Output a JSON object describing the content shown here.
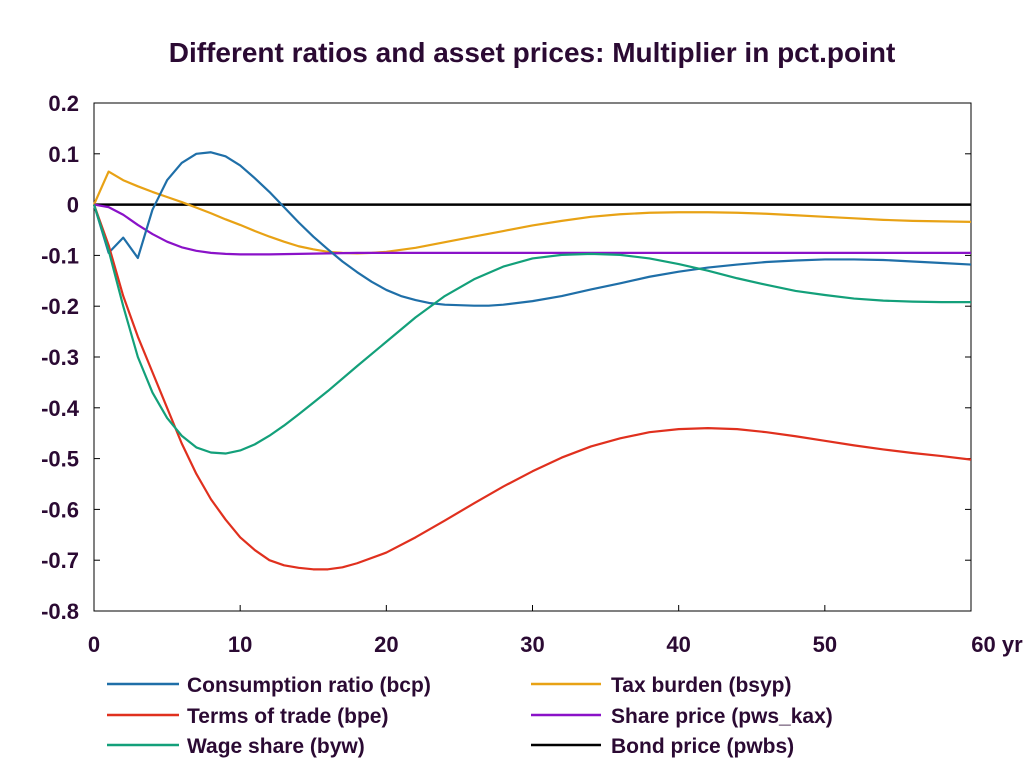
{
  "chart_data": {
    "type": "line",
    "title": "Different ratios and asset prices: Multiplier in pct.point",
    "xlabel": "",
    "ylabel": "",
    "xlim": [
      0,
      60
    ],
    "ylim": [
      -0.8,
      0.2
    ],
    "x_ticks": [
      0,
      10,
      20,
      30,
      40,
      50,
      60
    ],
    "x_tick_labels": [
      "0",
      "10",
      "20",
      "30",
      "40",
      "50",
      "60 yr"
    ],
    "y_ticks": [
      0.2,
      0.1,
      0,
      -0.1,
      -0.2,
      -0.3,
      -0.4,
      -0.5,
      -0.6,
      -0.7,
      -0.8
    ],
    "y_tick_labels": [
      "0.2",
      "0.1",
      "0",
      "-0.1",
      "-0.2",
      "-0.3",
      "-0.4",
      "-0.5",
      "-0.6",
      "-0.7",
      "-0.8"
    ],
    "grid": false,
    "legend_position": "bottom",
    "series": [
      {
        "name": "Consumption ratio (bcp)",
        "color": "#1f6fa8",
        "points": [
          [
            0,
            0
          ],
          [
            1,
            -0.095
          ],
          [
            2,
            -0.065
          ],
          [
            3,
            -0.105
          ],
          [
            4,
            -0.01
          ],
          [
            5,
            0.048
          ],
          [
            6,
            0.082
          ],
          [
            7,
            0.1
          ],
          [
            8,
            0.103
          ],
          [
            9,
            0.095
          ],
          [
            10,
            0.077
          ],
          [
            11,
            0.052
          ],
          [
            12,
            0.025
          ],
          [
            13,
            -0.005
          ],
          [
            14,
            -0.035
          ],
          [
            15,
            -0.063
          ],
          [
            16,
            -0.088
          ],
          [
            17,
            -0.112
          ],
          [
            18,
            -0.133
          ],
          [
            19,
            -0.152
          ],
          [
            20,
            -0.168
          ],
          [
            21,
            -0.18
          ],
          [
            22,
            -0.188
          ],
          [
            23,
            -0.194
          ],
          [
            24,
            -0.197
          ],
          [
            25,
            -0.198
          ],
          [
            26,
            -0.199
          ],
          [
            27,
            -0.199
          ],
          [
            28,
            -0.197
          ],
          [
            30,
            -0.19
          ],
          [
            32,
            -0.18
          ],
          [
            34,
            -0.167
          ],
          [
            36,
            -0.155
          ],
          [
            38,
            -0.142
          ],
          [
            40,
            -0.132
          ],
          [
            42,
            -0.124
          ],
          [
            44,
            -0.118
          ],
          [
            46,
            -0.113
          ],
          [
            48,
            -0.11
          ],
          [
            50,
            -0.108
          ],
          [
            52,
            -0.108
          ],
          [
            54,
            -0.109
          ],
          [
            56,
            -0.112
          ],
          [
            58,
            -0.115
          ],
          [
            60,
            -0.118
          ]
        ]
      },
      {
        "name": "Terms of trade (bpe)",
        "color": "#e0301e",
        "points": [
          [
            0,
            0
          ],
          [
            1,
            -0.08
          ],
          [
            2,
            -0.18
          ],
          [
            3,
            -0.26
          ],
          [
            4,
            -0.33
          ],
          [
            5,
            -0.4
          ],
          [
            6,
            -0.47
          ],
          [
            7,
            -0.53
          ],
          [
            8,
            -0.58
          ],
          [
            9,
            -0.62
          ],
          [
            10,
            -0.655
          ],
          [
            11,
            -0.68
          ],
          [
            12,
            -0.7
          ],
          [
            13,
            -0.71
          ],
          [
            14,
            -0.715
          ],
          [
            15,
            -0.718
          ],
          [
            16,
            -0.718
          ],
          [
            17,
            -0.714
          ],
          [
            18,
            -0.706
          ],
          [
            20,
            -0.685
          ],
          [
            22,
            -0.655
          ],
          [
            24,
            -0.622
          ],
          [
            26,
            -0.588
          ],
          [
            28,
            -0.555
          ],
          [
            30,
            -0.525
          ],
          [
            32,
            -0.498
          ],
          [
            34,
            -0.476
          ],
          [
            36,
            -0.46
          ],
          [
            38,
            -0.448
          ],
          [
            40,
            -0.442
          ],
          [
            42,
            -0.44
          ],
          [
            44,
            -0.442
          ],
          [
            46,
            -0.448
          ],
          [
            48,
            -0.456
          ],
          [
            50,
            -0.465
          ],
          [
            52,
            -0.474
          ],
          [
            54,
            -0.482
          ],
          [
            56,
            -0.489
          ],
          [
            58,
            -0.495
          ],
          [
            60,
            -0.502
          ]
        ]
      },
      {
        "name": "Wage share (byw)",
        "color": "#13a07a",
        "points": [
          [
            0,
            0
          ],
          [
            1,
            -0.09
          ],
          [
            2,
            -0.2
          ],
          [
            3,
            -0.3
          ],
          [
            4,
            -0.37
          ],
          [
            5,
            -0.42
          ],
          [
            6,
            -0.455
          ],
          [
            7,
            -0.478
          ],
          [
            8,
            -0.488
          ],
          [
            9,
            -0.49
          ],
          [
            10,
            -0.484
          ],
          [
            11,
            -0.472
          ],
          [
            12,
            -0.455
          ],
          [
            13,
            -0.435
          ],
          [
            14,
            -0.413
          ],
          [
            15,
            -0.39
          ],
          [
            16,
            -0.367
          ],
          [
            18,
            -0.318
          ],
          [
            20,
            -0.27
          ],
          [
            22,
            -0.222
          ],
          [
            24,
            -0.18
          ],
          [
            26,
            -0.147
          ],
          [
            28,
            -0.122
          ],
          [
            30,
            -0.106
          ],
          [
            32,
            -0.099
          ],
          [
            34,
            -0.097
          ],
          [
            36,
            -0.099
          ],
          [
            38,
            -0.106
          ],
          [
            40,
            -0.117
          ],
          [
            42,
            -0.13
          ],
          [
            44,
            -0.145
          ],
          [
            46,
            -0.158
          ],
          [
            48,
            -0.17
          ],
          [
            50,
            -0.178
          ],
          [
            52,
            -0.185
          ],
          [
            54,
            -0.189
          ],
          [
            56,
            -0.191
          ],
          [
            58,
            -0.192
          ],
          [
            60,
            -0.192
          ]
        ]
      },
      {
        "name": "Tax burden (bsyp)",
        "color": "#e8a215",
        "points": [
          [
            0,
            0
          ],
          [
            1,
            0.065
          ],
          [
            2,
            0.048
          ],
          [
            3,
            0.036
          ],
          [
            4,
            0.025
          ],
          [
            5,
            0.015
          ],
          [
            6,
            0.005
          ],
          [
            7,
            -0.006
          ],
          [
            8,
            -0.017
          ],
          [
            9,
            -0.029
          ],
          [
            10,
            -0.04
          ],
          [
            11,
            -0.052
          ],
          [
            12,
            -0.063
          ],
          [
            13,
            -0.073
          ],
          [
            14,
            -0.082
          ],
          [
            15,
            -0.088
          ],
          [
            16,
            -0.093
          ],
          [
            17,
            -0.095
          ],
          [
            18,
            -0.096
          ],
          [
            19,
            -0.095
          ],
          [
            20,
            -0.093
          ],
          [
            22,
            -0.085
          ],
          [
            24,
            -0.074
          ],
          [
            26,
            -0.063
          ],
          [
            28,
            -0.052
          ],
          [
            30,
            -0.041
          ],
          [
            32,
            -0.032
          ],
          [
            34,
            -0.024
          ],
          [
            36,
            -0.019
          ],
          [
            38,
            -0.016
          ],
          [
            40,
            -0.015
          ],
          [
            42,
            -0.015
          ],
          [
            44,
            -0.016
          ],
          [
            46,
            -0.018
          ],
          [
            48,
            -0.021
          ],
          [
            50,
            -0.024
          ],
          [
            52,
            -0.027
          ],
          [
            54,
            -0.03
          ],
          [
            56,
            -0.032
          ],
          [
            58,
            -0.033
          ],
          [
            60,
            -0.034
          ]
        ]
      },
      {
        "name": "Share price (pws_kax)",
        "color": "#8a12c8",
        "points": [
          [
            0,
            0
          ],
          [
            1,
            -0.005
          ],
          [
            2,
            -0.02
          ],
          [
            3,
            -0.04
          ],
          [
            4,
            -0.058
          ],
          [
            5,
            -0.073
          ],
          [
            6,
            -0.084
          ],
          [
            7,
            -0.091
          ],
          [
            8,
            -0.095
          ],
          [
            9,
            -0.097
          ],
          [
            10,
            -0.098
          ],
          [
            12,
            -0.098
          ],
          [
            14,
            -0.097
          ],
          [
            16,
            -0.096
          ],
          [
            18,
            -0.095
          ],
          [
            20,
            -0.095
          ],
          [
            25,
            -0.095
          ],
          [
            30,
            -0.095
          ],
          [
            40,
            -0.095
          ],
          [
            50,
            -0.095
          ],
          [
            60,
            -0.095
          ]
        ]
      },
      {
        "name": "Bond price (pwbs)",
        "color": "#000000",
        "points": [
          [
            0,
            0
          ],
          [
            60,
            0
          ]
        ]
      }
    ]
  }
}
